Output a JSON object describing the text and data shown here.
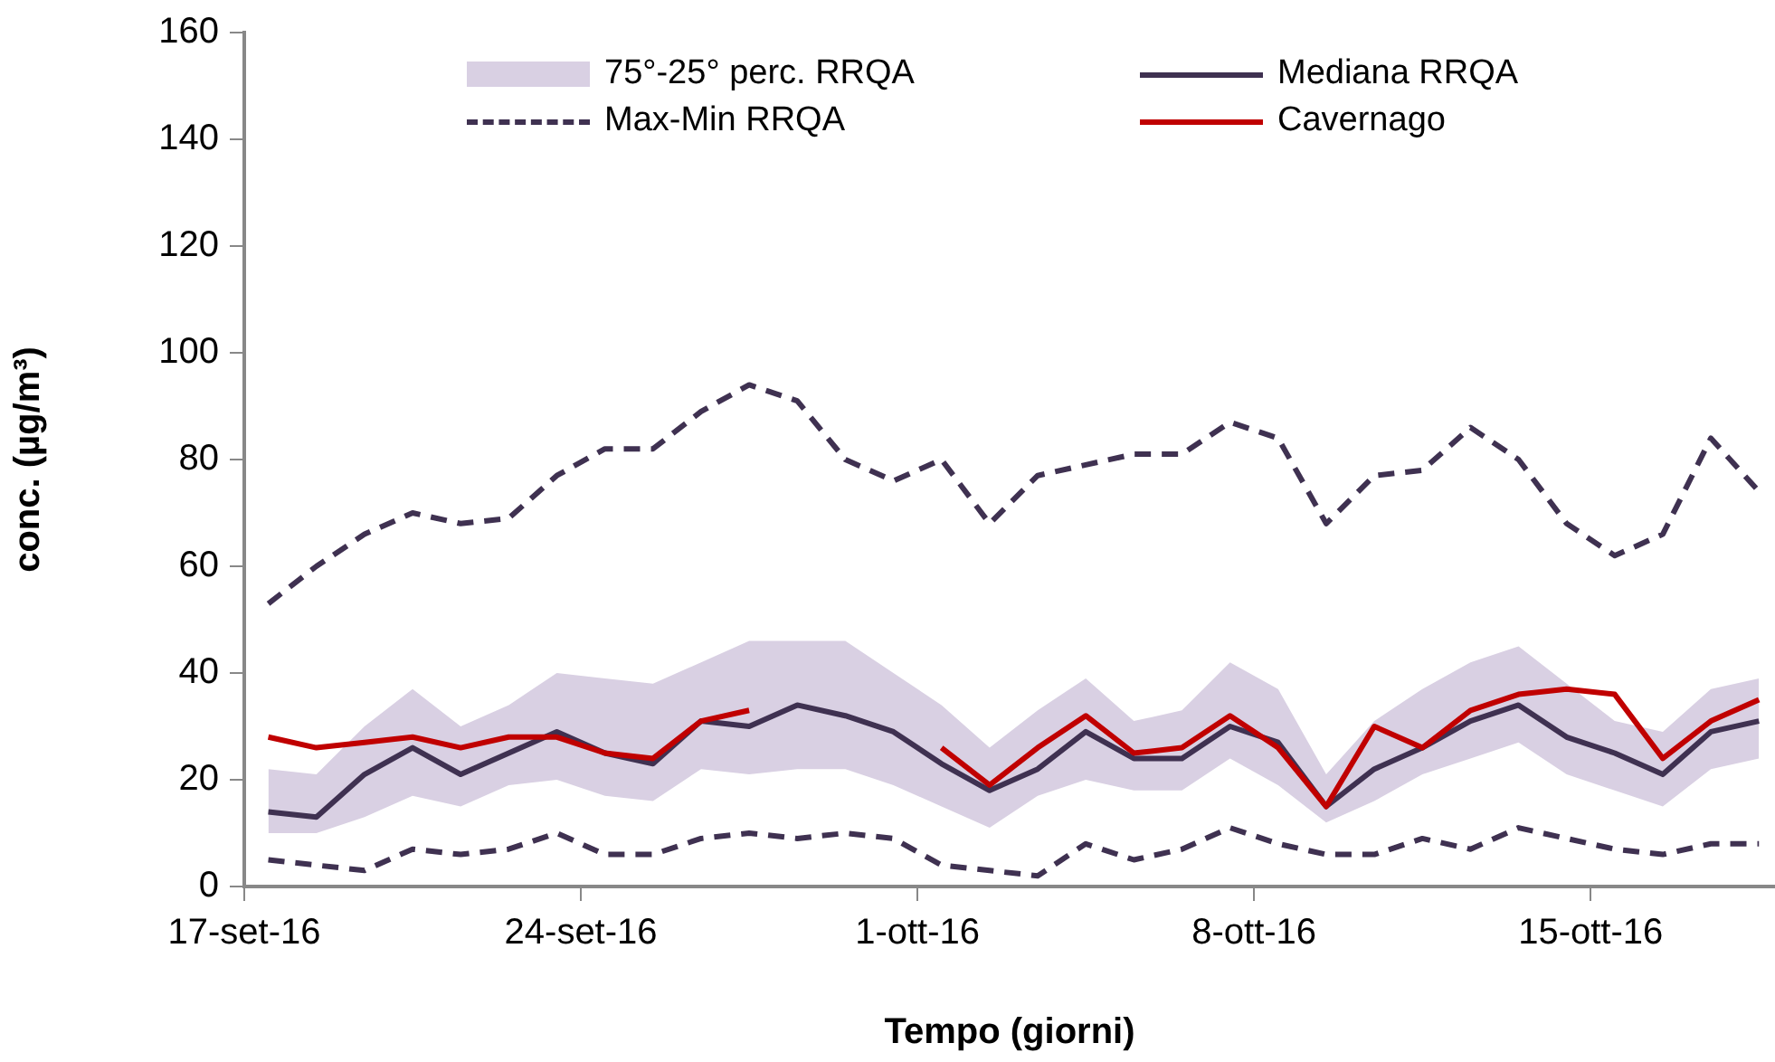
{
  "chart_data": {
    "type": "line",
    "xlabel": "Tempo (giorni)",
    "ylabel": "conc. (µg/m³)",
    "x": [
      "--09-17T12:00",
      "--09-18T12:00",
      "--09-19T12:00",
      "--09-20T12:00",
      "--09-21T12:00",
      "--09-22T12:00",
      "--09-23T12:00",
      "--09-24T12:00",
      "--09-25T12:00",
      "--09-26T12:00",
      "--09-27T12:00",
      "--09-28T12:00",
      "--09-29T12:00",
      "--09-30T12:00",
      "--10-01T12:00",
      "--10-02T12:00",
      "--10-03T12:00",
      "--10-04T12:00",
      "--10-05T12:00",
      "--10-06T12:00",
      "--10-07T12:00",
      "--10-08T12:00",
      "--10-09T12:00",
      "--10-10T12:00",
      "--10-11T12:00",
      "--10-12T12:00",
      "--10-13T12:00",
      "--10-14T12:00",
      "--10-15T12:00",
      "--10-16T12:00",
      "--10-17T12:00",
      "--10-18T12:00"
    ],
    "series": [
      {
        "name": "75°-25° perc. RRQA",
        "type": "area",
        "color": "#d9d0e3",
        "values": [
          null,
          null,
          null,
          null,
          null,
          null,
          null,
          null,
          null,
          null,
          null,
          null,
          null,
          null,
          null,
          null,
          null,
          null,
          null,
          null,
          null,
          null,
          null,
          null,
          null,
          null,
          null,
          null,
          null,
          null,
          null,
          null
        ],
        "lower": [
          10,
          10,
          13,
          17,
          15,
          19,
          20,
          17,
          16,
          22,
          21,
          22,
          22,
          19,
          15,
          11,
          17,
          20,
          18,
          18,
          24,
          19,
          12,
          16,
          21,
          24,
          27,
          21,
          18,
          15,
          22,
          24
        ],
        "upper": [
          22,
          21,
          30,
          37,
          30,
          34,
          40,
          39,
          38,
          42,
          46,
          46,
          46,
          40,
          34,
          26,
          33,
          39,
          31,
          33,
          42,
          37,
          21,
          31,
          37,
          42,
          45,
          38,
          31,
          29,
          37,
          39
        ]
      },
      {
        "name": "Mediana RRQA",
        "color": "#3f3151",
        "line_style": "solid",
        "values": [
          14,
          13,
          21,
          26,
          21,
          25,
          29,
          25,
          23,
          31,
          30,
          34,
          32,
          29,
          23,
          18,
          22,
          29,
          24,
          24,
          30,
          27,
          15,
          22,
          26,
          31,
          34,
          28,
          25,
          21,
          29,
          31
        ]
      },
      {
        "name": "Max-Min RRQA",
        "color": "#3f3151",
        "line_style": "dashed",
        "values": [
          53,
          60,
          66,
          70,
          68,
          69,
          77,
          82,
          82,
          89,
          94,
          91,
          80,
          76,
          80,
          68,
          77,
          79,
          81,
          81,
          87,
          84,
          68,
          77,
          78,
          86,
          80,
          68,
          62,
          66,
          84,
          74
        ]
      },
      {
        "color": "#3f3151",
        "line_style": "dashed",
        "values": [
          5,
          4,
          3,
          7,
          6,
          7,
          10,
          6,
          6,
          9,
          10,
          9,
          10,
          9,
          4,
          3,
          2,
          8,
          5,
          7,
          11,
          8,
          6,
          6,
          9,
          7,
          11,
          9,
          7,
          6,
          8,
          8
        ]
      },
      {
        "name": "Cavernago",
        "color": "#c00000",
        "line_style": "solid",
        "values": [
          28,
          26,
          27,
          28,
          26,
          28,
          28,
          25,
          24,
          31,
          33,
          null,
          null,
          null,
          26,
          19,
          26,
          32,
          25,
          26,
          32,
          26,
          15,
          30,
          26,
          33,
          36,
          37,
          36,
          24,
          31,
          35
        ]
      }
    ],
    "xlim": [
      "--09-17",
      "--10-18T20:00"
    ],
    "xticks": [
      {
        "value": "--09-17",
        "label": "17-set-16"
      },
      {
        "value": "--09-24",
        "label": "24-set-16"
      },
      {
        "value": "--10-01",
        "label": "1-ott-16"
      },
      {
        "value": "--10-08",
        "label": "8-ott-16"
      },
      {
        "value": "--10-15",
        "label": "15-ott-16"
      }
    ],
    "ylim": [
      0,
      160
    ],
    "yticks": [
      0,
      20,
      40,
      60,
      80,
      100,
      120,
      140,
      160
    ],
    "legend": "top",
    "grid": false,
    "marker": "none"
  }
}
